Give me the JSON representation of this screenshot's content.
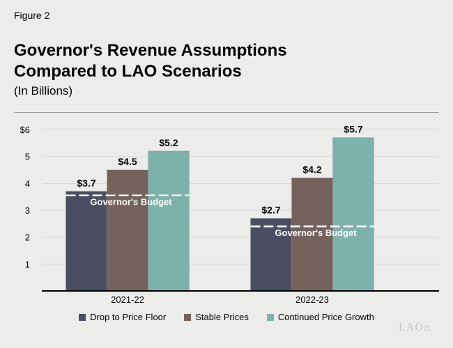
{
  "figure_label": "Figure 2",
  "title_line1": "Governor's Revenue Assumptions",
  "title_line2": "Compared to LAO Scenarios",
  "subtitle": "(In Billions)",
  "logo_text": "LAO",
  "chart_data": {
    "type": "bar",
    "categories": [
      "2021-22",
      "2022-23"
    ],
    "series": [
      {
        "name": "Drop to Price Floor",
        "values": [
          3.7,
          2.7
        ],
        "color": "#4b4d63"
      },
      {
        "name": "Stable Prices",
        "values": [
          4.5,
          4.2
        ],
        "color": "#76625c"
      },
      {
        "name": "Continued Price Growth",
        "values": [
          5.2,
          5.7
        ],
        "color": "#7db2aa"
      }
    ],
    "data_labels": [
      [
        "$3.7",
        "$2.7"
      ],
      [
        "$4.5",
        "$4.2"
      ],
      [
        "$5.2",
        "$5.7"
      ]
    ],
    "reference_lines": {
      "label": "Governor's Budget",
      "values": [
        3.55,
        2.4
      ],
      "color": "#ffffff",
      "style": "dashed"
    },
    "ylim": [
      0,
      6
    ],
    "yticks": [
      1,
      2,
      3,
      4,
      5,
      6
    ],
    "ytick_labels": [
      "1",
      "2",
      "3",
      "4",
      "5",
      "$6"
    ],
    "grid": true,
    "legend": "bottom"
  }
}
